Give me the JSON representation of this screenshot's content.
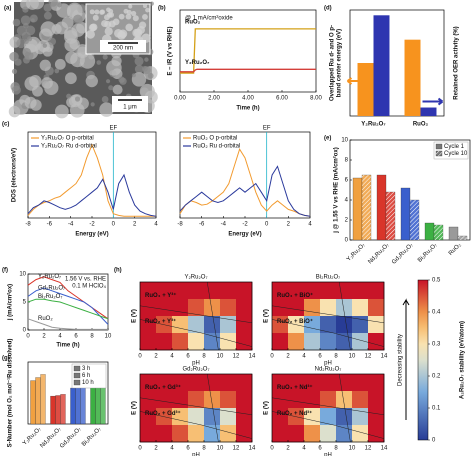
{
  "chart_data": [
    {
      "type": "image",
      "panel": "(a)",
      "annotations": [
        "200 nm",
        "1 μm"
      ]
    },
    {
      "type": "line",
      "panel": "(b)",
      "ylabel": "E – iR (V vs RHE)",
      "xlabel": "Time (h)",
      "annotation": "@ 1 mA/cm²oxide",
      "x": [
        0,
        0.8,
        0.9,
        1,
        2,
        4,
        6,
        8
      ],
      "xlim": [
        0,
        8
      ],
      "xticks": [
        {
          "value": 0,
          "label": "0.00"
        },
        {
          "value": 2,
          "label": "2.00"
        },
        {
          "value": 4,
          "label": "4.00"
        },
        {
          "value": 6,
          "label": "6.00"
        },
        {
          "value": 8,
          "label": "8.00"
        }
      ],
      "ylim": [
        1.2,
        2.5
      ],
      "series": [
        {
          "name": "RuO₂",
          "color": "#d4a017",
          "values": [
            1.5,
            1.5,
            2.2,
            2.2,
            2.2,
            2.2,
            2.2,
            2.2
          ]
        },
        {
          "name": "Y₂Ru₂O₇",
          "color": "#d43f3a",
          "values": [
            1.52,
            1.52,
            1.55,
            1.56,
            1.56,
            1.56,
            1.56,
            1.56
          ]
        }
      ]
    },
    {
      "type": "line",
      "panel": "(c)",
      "ylabel": "DOS (electrons/eV)",
      "xlabel": "Energy (eV)",
      "marker": "EF",
      "x": [
        -8,
        -7.5,
        -7,
        -6.5,
        -6,
        -5.5,
        -5,
        -4.5,
        -4,
        -3.5,
        -3,
        -2.5,
        -2,
        -1.5,
        -1,
        -0.5,
        0,
        0.5,
        1,
        1.5,
        2,
        2.5,
        3,
        3.5,
        4
      ],
      "xlim": [
        -8,
        4
      ],
      "xticks": [
        -8,
        -6,
        -4,
        -2,
        0,
        2,
        4
      ],
      "ylim": [
        0,
        10
      ],
      "series": [
        {
          "name": "Y₂Ru₂O₇ O p-orbital",
          "color": "#f29b30",
          "values": [
            0.3,
            1,
            1.5,
            1.8,
            2,
            2.3,
            2.5,
            3,
            3.5,
            4,
            5,
            7,
            8.5,
            7,
            5,
            2,
            0.5,
            0.3,
            0.2,
            0.2,
            0.2,
            0.2,
            0.2,
            0.2,
            0.2
          ]
        },
        {
          "name": "Y₂Ru₂O₇ Ru d-orbital",
          "color": "#2b3a9c",
          "values": [
            0.5,
            1.2,
            1.5,
            2,
            1.8,
            1.5,
            1.2,
            1,
            1.2,
            1.5,
            2,
            2.5,
            3,
            3.5,
            4.5,
            3,
            1,
            4,
            5,
            3,
            1.5,
            0.8,
            0.5,
            0.3,
            0.2
          ]
        }
      ]
    },
    {
      "type": "line",
      "xlabel": "Energy (eV)",
      "marker": "EF",
      "x": [
        -8,
        -7.5,
        -7,
        -6.5,
        -6,
        -5.5,
        -5,
        -4.5,
        -4,
        -3.5,
        -3,
        -2.5,
        -2,
        -1.5,
        -1,
        -0.5,
        0,
        0.5,
        1,
        1.5,
        2,
        2.5,
        3,
        3.5,
        4
      ],
      "xlim": [
        -8,
        4
      ],
      "xticks": [
        -8,
        -6,
        -4,
        -2,
        0,
        2,
        4
      ],
      "ylim": [
        0,
        10
      ],
      "series": [
        {
          "name": "RuO₂ O p-orbital",
          "color": "#f29b30",
          "values": [
            0.5,
            1.5,
            2,
            1.8,
            1.5,
            1.6,
            2,
            2.5,
            3,
            4,
            6,
            8,
            7,
            5,
            3,
            1.5,
            0.8,
            1.5,
            2,
            1.5,
            1,
            0.8,
            0.5,
            0.3,
            0.2
          ]
        },
        {
          "name": "RuO₂ Ru d-orbital",
          "color": "#2b3a9c",
          "values": [
            0.8,
            1.5,
            2,
            2.5,
            3,
            2.5,
            2,
            1.8,
            2,
            2.5,
            3,
            3.5,
            3,
            3.5,
            4,
            3,
            2,
            5,
            6,
            4,
            2,
            1,
            0.5,
            0.3,
            0.2
          ]
        }
      ]
    },
    {
      "type": "bar",
      "panel": "(d)",
      "categories": [
        "Y₂Ru₂O₇",
        "RuO₂"
      ],
      "ylabel": [
        "Overlapped Ru d- and O p-",
        "band center energy (eV)"
      ],
      "y2label": "Retained OER activity (%)",
      "ylim": [
        0,
        1
      ],
      "y2lim": [
        0,
        100
      ],
      "series": [
        {
          "color": "#f7931e",
          "values": [
            0.5,
            0.72
          ]
        },
        {
          "color": "#2e35b0",
          "axis": "y2",
          "values": [
            95,
            8
          ]
        }
      ]
    },
    {
      "type": "bar",
      "panel": "(e)",
      "categories": [
        "Y₂Ru₂O₇",
        "Nd₂Ru₂O₇",
        "Gd₂Ru₂O₇",
        "Bi₂Ru₂O₇",
        "RuO₂"
      ],
      "colors": [
        "#f0a040",
        "#d9352a",
        "#3a5fcd",
        "#3cb043",
        "#9a9a9a"
      ],
      "ylabel": "j @ 1.55 V vs RHE (mA/cm²ox)",
      "ylim": [
        0,
        10
      ],
      "yticks": [
        0,
        2,
        4,
        6,
        8,
        10
      ],
      "legend": "upper right",
      "series": [
        {
          "name": "Cycle 1",
          "values": [
            6.2,
            6.5,
            5.2,
            1.7,
            1.3
          ]
        },
        {
          "name": "Cycle 10",
          "hatch": true,
          "values": [
            6.5,
            4.8,
            4.0,
            1.5,
            0.4
          ]
        }
      ]
    },
    {
      "type": "line",
      "panel": "(f)",
      "ylabel": "j (mA/cm²ox)",
      "xlabel": "Time (h)",
      "annotations": [
        "1.56 V vs. RHE",
        "0.1 M HClO₄"
      ],
      "x": [
        0,
        1,
        2,
        3,
        4,
        5,
        6,
        7,
        8,
        9,
        10
      ],
      "xlim": [
        0,
        10
      ],
      "xticks": [
        0,
        2,
        4,
        6,
        8,
        10
      ],
      "ylim": [
        0,
        10
      ],
      "yticks": [
        0,
        5,
        10
      ],
      "series": [
        {
          "name": "Y₂Ru₂O₇",
          "color": "#d9352a",
          "values": [
            8,
            9,
            9.5,
            9,
            8.5,
            7,
            6,
            5,
            4,
            3,
            2
          ]
        },
        {
          "name": "Gd₂Ru₂O₇",
          "color": "#3a5fcd",
          "values": [
            6,
            7,
            7.5,
            7,
            6.5,
            6,
            5.5,
            5,
            4,
            2.5,
            1
          ]
        },
        {
          "name": "Bi₂Ru₂O₇",
          "color": "#3cb043",
          "values": [
            5,
            5.5,
            5.5,
            5.2,
            5,
            4.5,
            4,
            3.5,
            3,
            2.5,
            2
          ]
        },
        {
          "name": "RuO₂",
          "color": "#9a9a9a",
          "values": [
            2,
            1.5,
            1,
            0.5,
            0.3,
            0.2,
            0.1,
            0.1,
            0.1,
            0.1,
            0.1
          ]
        }
      ]
    },
    {
      "type": "bar",
      "panel": "(g)",
      "categories": [
        "Y₂Ru₂O₇",
        "Nd₂Ru₂O₇",
        "Gd₂Ru₂O₇",
        "Bi₂Ru₂O₇"
      ],
      "colors": [
        "#f0a040",
        "#d9352a",
        "#3a5fcd",
        "#3cb043"
      ],
      "ylabel": "S-Number (mol O₂ mol⁻¹Ru dissolved)",
      "ylim": [
        0,
        10
      ],
      "legend": "upper right",
      "series": [
        {
          "name": "3 h",
          "values": [
            7,
            4.5,
            5.8,
            6
          ]
        },
        {
          "name": "6 h",
          "values": [
            7.5,
            4.6,
            6,
            6.3
          ]
        },
        {
          "name": "10 h",
          "values": [
            8,
            4.8,
            6.2,
            6.5
          ]
        }
      ]
    },
    {
      "type": "heatmap",
      "panel": "(h)",
      "xlabel": "pH",
      "ylabel": "E (V)",
      "xlim": [
        0,
        14
      ],
      "xticks": [
        0,
        2,
        4,
        6,
        8,
        10,
        12,
        14
      ],
      "colorbar_label": "A₂Ru₂O₇ stability (eV/atom)",
      "note": "Decreasing stability",
      "clim": [
        0,
        0.5
      ],
      "cticks": [
        0,
        0.1,
        0.2,
        0.3,
        0.4,
        0.5
      ],
      "maps": [
        {
          "title": "Y₂Ru₂O₇",
          "regions": [
            "RuO₄ + Y³⁺",
            "RuO₂ + Y³⁺"
          ],
          "values": [
            [
              0.5,
              0.5,
              0.5,
              0.5,
              0.5,
              0.5,
              0.5
            ],
            [
              0.5,
              0.5,
              0.5,
              0.45,
              0.4,
              0.45,
              0.5
            ],
            [
              0.5,
              0.45,
              0.35,
              0.2,
              0.05,
              0.2,
              0.5
            ],
            [
              0.5,
              0.5,
              0.45,
              0.3,
              0.1,
              0.3,
              0.5
            ]
          ]
        },
        {
          "title": "Bi₂Ru₂O₇",
          "regions": [
            "RuO₄ + BiO⁺",
            "RuO₂ + BiO⁺"
          ],
          "values": [
            [
              0.5,
              0.5,
              0.5,
              0.5,
              0.5,
              0.5,
              0.5
            ],
            [
              0.5,
              0.5,
              0.4,
              0.3,
              0.2,
              0.3,
              0.45
            ],
            [
              0.45,
              0.3,
              0.15,
              0.05,
              0,
              0.05,
              0.3
            ],
            [
              0.5,
              0.4,
              0.2,
              0.1,
              0.05,
              0.2,
              0.5
            ]
          ]
        },
        {
          "title": "Gd₂Ru₂O₇",
          "regions": [
            "RuO₄ + Gd³⁺",
            "RuO₂ + Gd³⁺"
          ],
          "values": [
            [
              0.5,
              0.5,
              0.5,
              0.5,
              0.5,
              0.5,
              0.5
            ],
            [
              0.5,
              0.5,
              0.5,
              0.45,
              0.4,
              0.45,
              0.5
            ],
            [
              0.5,
              0.45,
              0.35,
              0.25,
              0.1,
              0.25,
              0.5
            ],
            [
              0.5,
              0.5,
              0.45,
              0.35,
              0.15,
              0.35,
              0.5
            ]
          ]
        },
        {
          "title": "Nd₂Ru₂O₇",
          "regions": [
            "RuO₄ + Nd³⁺",
            "RuO₂ + Nd³⁺"
          ],
          "values": [
            [
              0.5,
              0.5,
              0.5,
              0.5,
              0.5,
              0.5,
              0.5
            ],
            [
              0.5,
              0.5,
              0.5,
              0.45,
              0.35,
              0.45,
              0.5
            ],
            [
              0.5,
              0.45,
              0.3,
              0.15,
              0.05,
              0.2,
              0.5
            ],
            [
              0.5,
              0.5,
              0.4,
              0.25,
              0.1,
              0.3,
              0.5
            ]
          ]
        }
      ]
    }
  ]
}
